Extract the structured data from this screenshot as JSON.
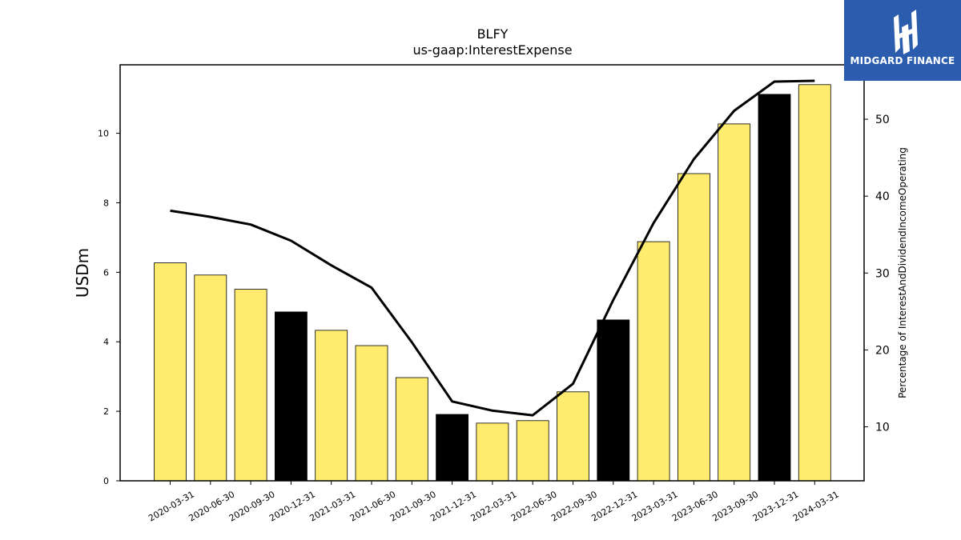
{
  "chart_data": {
    "type": "bar",
    "title": "BLFY",
    "subtitle": "us-gaap:InterestExpense",
    "ylabel": "USDm",
    "y2label": "Percentage of InterestAndDividendIncomeOperating",
    "categories": [
      "2020-03-31",
      "2020-06-30",
      "2020-09-30",
      "2020-12-31",
      "2021-03-31",
      "2021-06-30",
      "2021-09-30",
      "2021-12-31",
      "2022-03-31",
      "2022-06-30",
      "2022-09-30",
      "2022-12-31",
      "2023-03-31",
      "2023-06-30",
      "2023-09-30",
      "2023-12-31",
      "2024-03-31"
    ],
    "series": [
      {
        "type": "bar",
        "values": [
          6.27,
          5.92,
          5.51,
          4.86,
          4.33,
          3.89,
          2.97,
          1.91,
          1.66,
          1.73,
          2.56,
          4.63,
          6.88,
          8.84,
          10.27,
          11.12,
          11.4
        ],
        "colors": [
          "#ffec6e",
          "#ffec6e",
          "#ffec6e",
          "#000000",
          "#ffec6e",
          "#ffec6e",
          "#ffec6e",
          "#000000",
          "#ffec6e",
          "#ffec6e",
          "#ffec6e",
          "#000000",
          "#ffec6e",
          "#ffec6e",
          "#ffec6e",
          "#000000",
          "#ffec6e"
        ],
        "axis": "left"
      },
      {
        "type": "line",
        "values": [
          38.1,
          37.3,
          36.3,
          34.2,
          31.0,
          28.1,
          21.0,
          13.3,
          12.1,
          11.5,
          15.6,
          26.5,
          36.5,
          44.8,
          51.1,
          54.9,
          55.0
        ],
        "color": "#000000",
        "axis": "right"
      }
    ],
    "ylim": [
      0,
      11.97
    ],
    "yticks": [
      0,
      2,
      4,
      6,
      8,
      10
    ],
    "y2lim": [
      2.98,
      57.08
    ],
    "y2ticks": [
      10,
      20,
      30,
      40,
      50
    ],
    "grid": false,
    "legend": "none"
  },
  "logo": {
    "text": "MIDGARD FINANCE",
    "background": "#2b5cad",
    "icon": "midgard-logo-icon"
  }
}
